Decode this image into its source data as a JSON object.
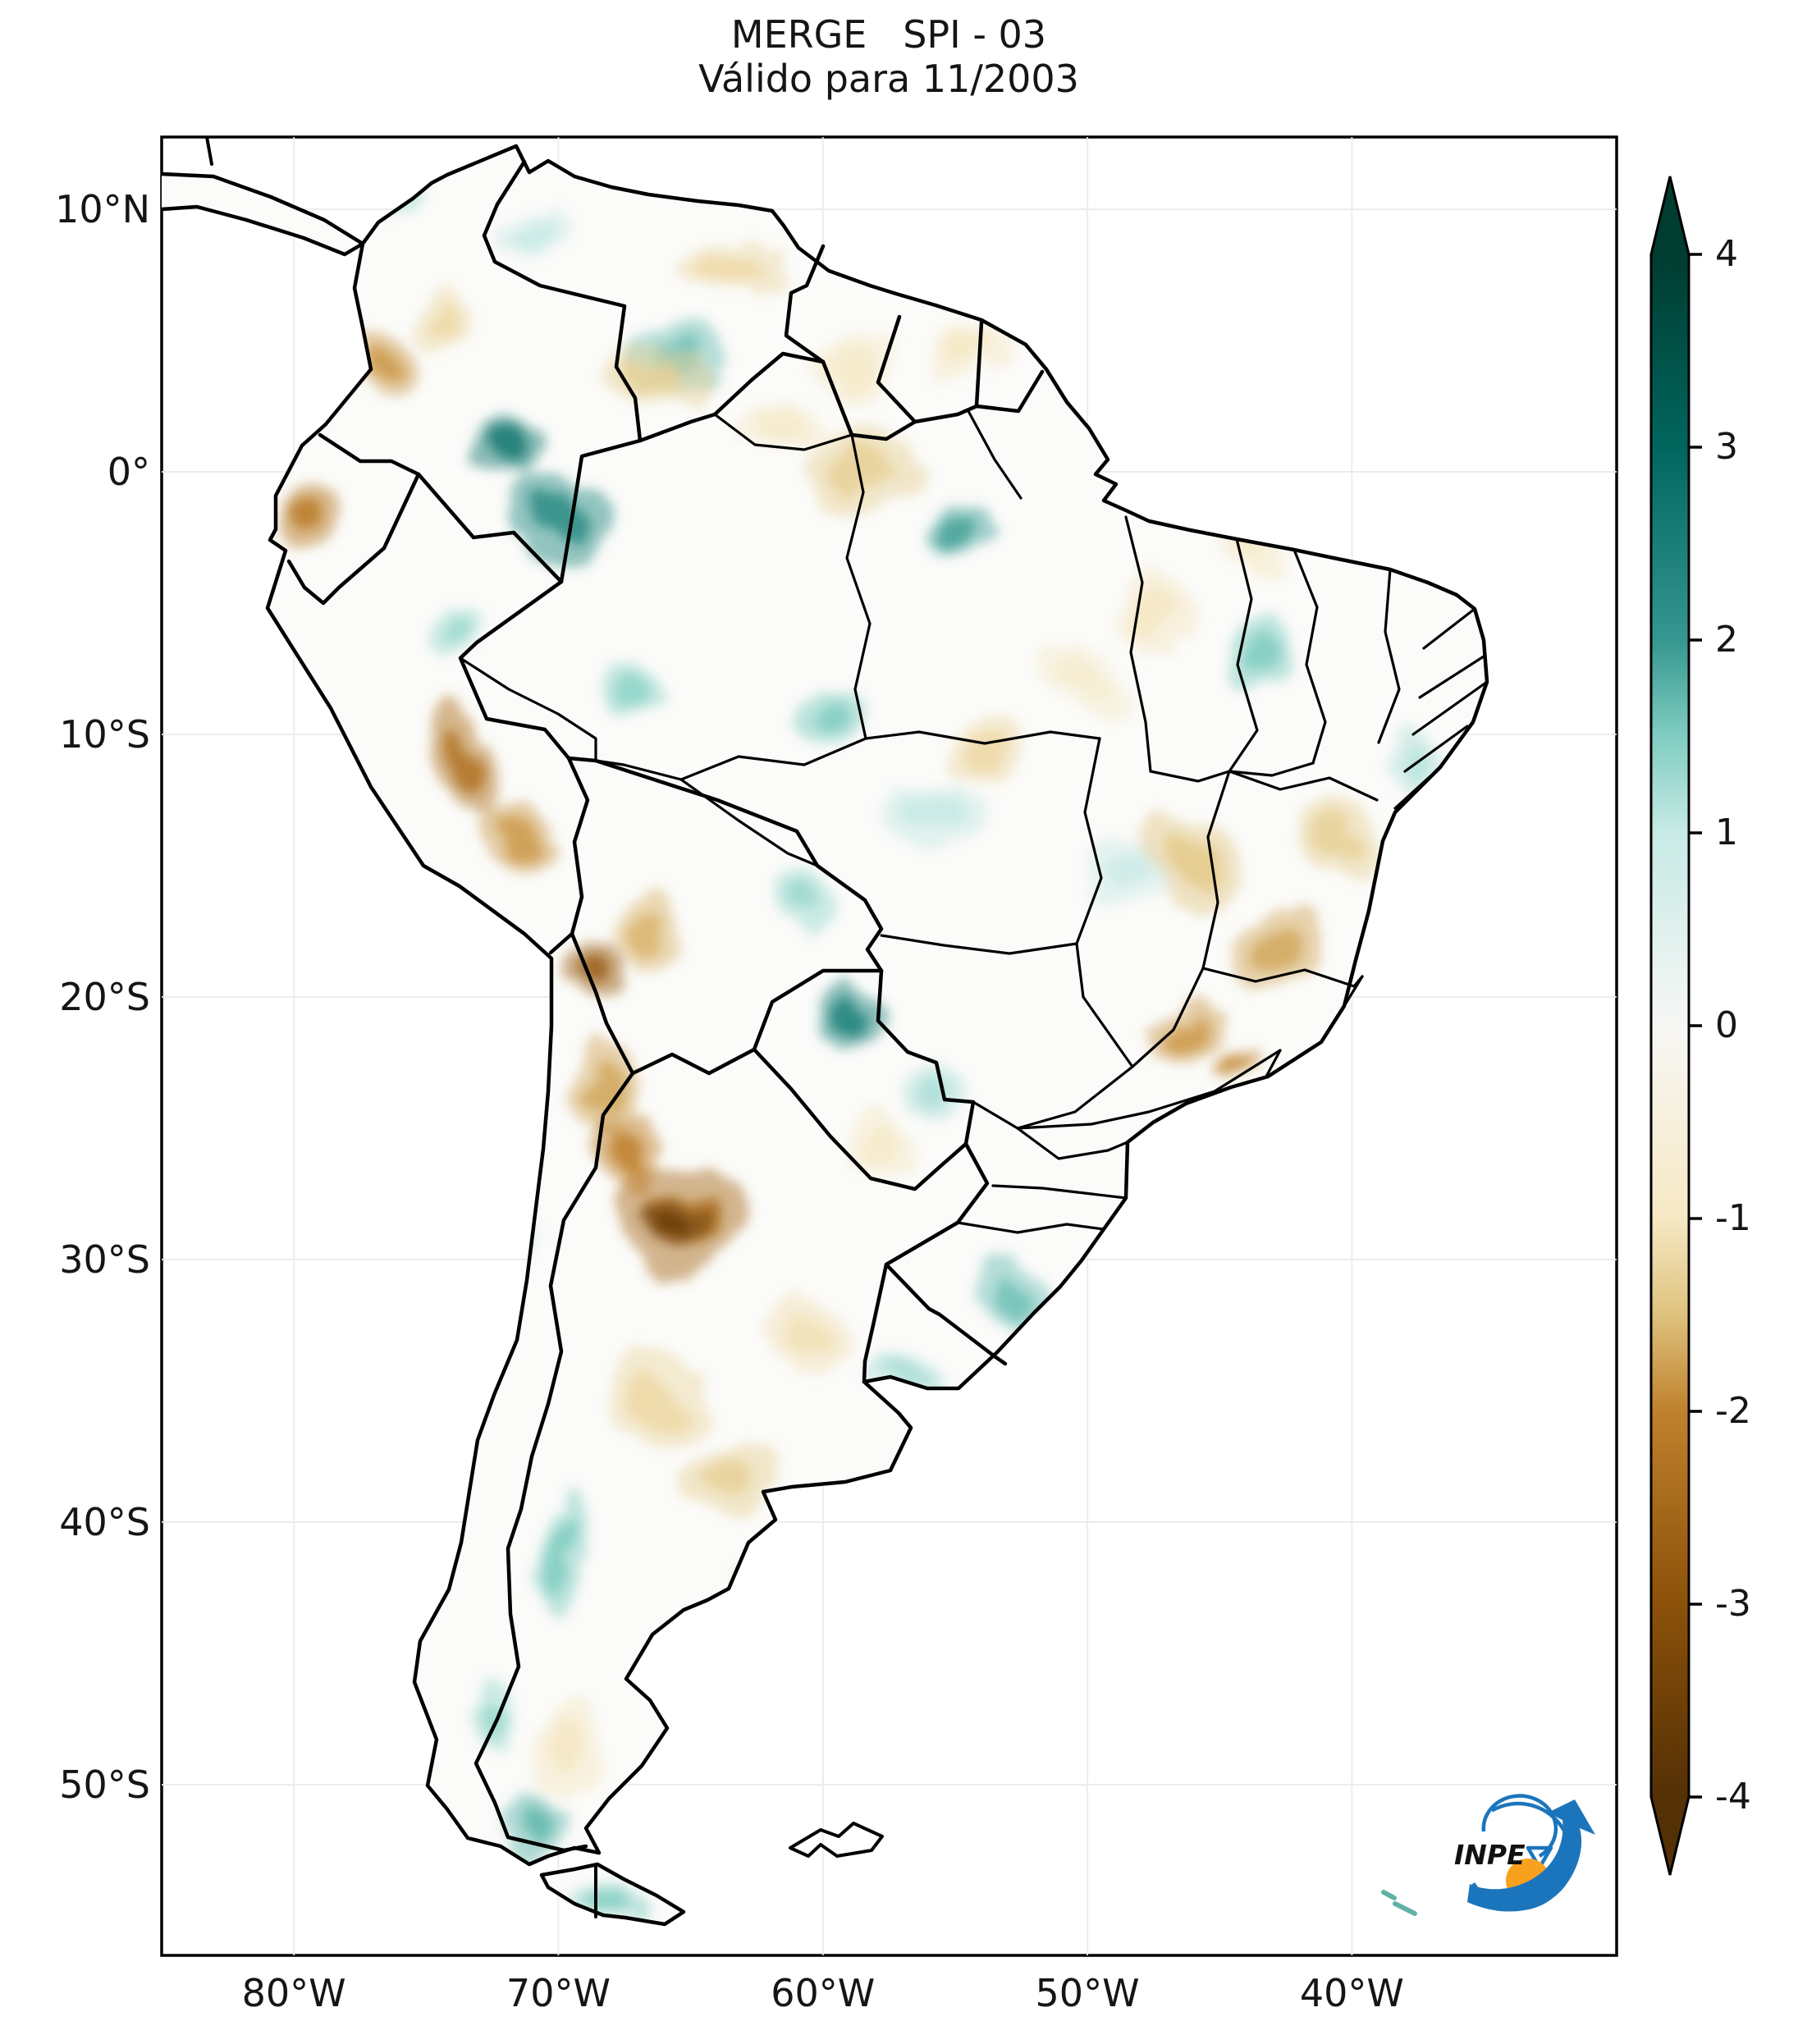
{
  "title": {
    "line1": "MERGE   SPI - 03",
    "line2": "Válido para 11/2003"
  },
  "logo": {
    "text": "INPE"
  },
  "axes": {
    "lat_ticks": [
      {
        "deg": 10,
        "label": "10°N"
      },
      {
        "deg": 0,
        "label": "0°"
      },
      {
        "deg": -10,
        "label": "10°S"
      },
      {
        "deg": -20,
        "label": "20°S"
      },
      {
        "deg": -30,
        "label": "30°S"
      },
      {
        "deg": -40,
        "label": "40°S"
      },
      {
        "deg": -50,
        "label": "50°S"
      }
    ],
    "lon_ticks": [
      {
        "deg": -80,
        "label": "80°W"
      },
      {
        "deg": -70,
        "label": "70°W"
      },
      {
        "deg": -60,
        "label": "60°W"
      },
      {
        "deg": -50,
        "label": "50°W"
      },
      {
        "deg": -40,
        "label": "40°W"
      }
    ]
  },
  "colorbar": {
    "extend": "both",
    "ticks": [
      {
        "value": 4,
        "label": "4"
      },
      {
        "value": 3,
        "label": "3"
      },
      {
        "value": 2,
        "label": "2"
      },
      {
        "value": 1,
        "label": "1"
      },
      {
        "value": 0,
        "label": "0"
      },
      {
        "value": -1,
        "label": "-1"
      },
      {
        "value": -2,
        "label": "-2"
      },
      {
        "value": -3,
        "label": "-3"
      },
      {
        "value": -4,
        "label": "-4"
      }
    ]
  },
  "chart_data": {
    "type": "heatmap",
    "title": "MERGE   SPI - 03",
    "subtitle": "Válido para 11/2003",
    "variable": "SPI-03 (3-month Standardized Precipitation Index) from MERGE precipitation",
    "region": "South America",
    "lon_range": [
      -85,
      -29.9
    ],
    "lat_range": [
      -56.5,
      12.75
    ],
    "color_range": [
      -4,
      4
    ],
    "colormap": "BrBG (brown = dry / negative SPI, teal = wet / positive SPI)",
    "colormap_stops": [
      {
        "v": 4,
        "c": "#003c30"
      },
      {
        "v": 3,
        "c": "#01665e"
      },
      {
        "v": 2,
        "c": "#35978f"
      },
      {
        "v": 1.5,
        "c": "#80cdc1"
      },
      {
        "v": 1,
        "c": "#c7eae5"
      },
      {
        "v": 0,
        "c": "#f7f7f5"
      },
      {
        "v": -1,
        "c": "#f6e8c3"
      },
      {
        "v": -1.5,
        "c": "#dfc27d"
      },
      {
        "v": -2,
        "c": "#bf812d"
      },
      {
        "v": -3,
        "c": "#8c510a"
      },
      {
        "v": -4,
        "c": "#543005"
      }
    ],
    "anomalies": [
      {
        "lon": -76.4,
        "lat": 10.6,
        "spi": 1.3,
        "rx": 1.4,
        "ry": 1.0,
        "rot": 0
      },
      {
        "lon": -71.0,
        "lat": 9.3,
        "spi": 1.0,
        "rx": 1.3,
        "ry": 0.9,
        "rot": 0
      },
      {
        "lon": -65.5,
        "lat": 4.3,
        "spi": 1.6,
        "rx": 1.9,
        "ry": 1.3,
        "rot": -15
      },
      {
        "lon": -72.0,
        "lat": 0.6,
        "spi": 2.6,
        "rx": 1.3,
        "ry": 1.1,
        "rot": 0
      },
      {
        "lon": -69.8,
        "lat": -1.8,
        "spi": 2.2,
        "rx": 2.0,
        "ry": 1.5,
        "rot": 20
      },
      {
        "lon": -74.0,
        "lat": -6.0,
        "spi": 1.3,
        "rx": 1.1,
        "ry": 0.9,
        "rot": 0
      },
      {
        "lon": -67.5,
        "lat": -8.0,
        "spi": 1.4,
        "rx": 1.4,
        "ry": 1.0,
        "rot": 0
      },
      {
        "lon": -54.6,
        "lat": -2.0,
        "spi": 1.9,
        "rx": 1.3,
        "ry": 1.0,
        "rot": 0
      },
      {
        "lon": -43.4,
        "lat": -7.0,
        "spi": 1.5,
        "rx": 1.2,
        "ry": 1.6,
        "rot": 0
      },
      {
        "lon": -37.6,
        "lat": -10.8,
        "spi": 1.1,
        "rx": 0.8,
        "ry": 1.0,
        "rot": 0
      },
      {
        "lon": -59.5,
        "lat": -9.3,
        "spi": 1.5,
        "rx": 1.6,
        "ry": 1.2,
        "rot": 0
      },
      {
        "lon": -56.0,
        "lat": -13.0,
        "spi": 1.0,
        "rx": 1.8,
        "ry": 1.3,
        "rot": 0
      },
      {
        "lon": -49.0,
        "lat": -15.5,
        "spi": 0.9,
        "rx": 1.5,
        "ry": 1.2,
        "rot": 0
      },
      {
        "lon": -60.8,
        "lat": -16.3,
        "spi": 1.3,
        "rx": 1.3,
        "ry": 1.0,
        "rot": 0
      },
      {
        "lon": -58.8,
        "lat": -20.5,
        "spi": 2.4,
        "rx": 1.3,
        "ry": 1.2,
        "rot": 0
      },
      {
        "lon": -55.8,
        "lat": -23.5,
        "spi": 1.2,
        "rx": 1.2,
        "ry": 1.0,
        "rot": 0
      },
      {
        "lon": -52.7,
        "lat": -31.3,
        "spi": 1.6,
        "rx": 1.5,
        "ry": 1.1,
        "rot": 30
      },
      {
        "lon": -57.0,
        "lat": -34.3,
        "spi": 1.2,
        "rx": 1.5,
        "ry": 0.8,
        "rot": 0
      },
      {
        "lon": -71.8,
        "lat": -30.0,
        "spi": 1.1,
        "rx": 0.5,
        "ry": 1.5,
        "rot": 0
      },
      {
        "lon": -70.0,
        "lat": -41.5,
        "spi": 1.5,
        "rx": 0.8,
        "ry": 2.2,
        "rot": 0
      },
      {
        "lon": -72.3,
        "lat": -47.5,
        "spi": 1.3,
        "rx": 0.8,
        "ry": 1.5,
        "rot": 0
      },
      {
        "lon": -70.7,
        "lat": -51.5,
        "spi": 1.7,
        "rx": 0.9,
        "ry": 1.6,
        "rot": 0
      },
      {
        "lon": -68.0,
        "lat": -54.6,
        "spi": 1.5,
        "rx": 1.3,
        "ry": 0.7,
        "rot": 0
      },
      {
        "lon": -76.6,
        "lat": 4.3,
        "spi": -1.8,
        "rx": 1.1,
        "ry": 1.3,
        "rot": 0
      },
      {
        "lon": -74.3,
        "lat": 5.8,
        "spi": -1.2,
        "rx": 1.2,
        "ry": 1.0,
        "rot": 0
      },
      {
        "lon": -79.3,
        "lat": -1.8,
        "spi": -2.1,
        "rx": 1.2,
        "ry": 1.5,
        "rot": 10
      },
      {
        "lon": -66.5,
        "lat": 3.5,
        "spi": -1.3,
        "rx": 2.2,
        "ry": 1.2,
        "rot": 0
      },
      {
        "lon": -63.4,
        "lat": 7.8,
        "spi": -1.2,
        "rx": 1.7,
        "ry": 1.1,
        "rot": 0
      },
      {
        "lon": -59.0,
        "lat": 4.0,
        "spi": -0.9,
        "rx": 1.5,
        "ry": 1.2,
        "rot": 0
      },
      {
        "lon": -54.5,
        "lat": 4.5,
        "spi": -1.0,
        "rx": 1.5,
        "ry": 0.9,
        "rot": 0
      },
      {
        "lon": -61.5,
        "lat": 1.5,
        "spi": -0.9,
        "rx": 1.4,
        "ry": 1.0,
        "rot": 0
      },
      {
        "lon": -58.5,
        "lat": 0.3,
        "spi": -1.3,
        "rx": 2.0,
        "ry": 1.4,
        "rot": 0
      },
      {
        "lon": -73.5,
        "lat": -11.0,
        "spi": -2.3,
        "rx": 1.3,
        "ry": 2.2,
        "rot": -35
      },
      {
        "lon": -71.5,
        "lat": -14.0,
        "spi": -1.8,
        "rx": 1.2,
        "ry": 1.5,
        "rot": -30
      },
      {
        "lon": -68.8,
        "lat": -18.8,
        "spi": -2.7,
        "rx": 1.1,
        "ry": 1.4,
        "rot": 0
      },
      {
        "lon": -66.5,
        "lat": -17.5,
        "spi": -1.6,
        "rx": 1.5,
        "ry": 1.2,
        "rot": 0
      },
      {
        "lon": -68.3,
        "lat": -23.5,
        "spi": -1.7,
        "rx": 1.3,
        "ry": 1.8,
        "rot": 0
      },
      {
        "lon": -65.5,
        "lat": -28.3,
        "spi": -2.4,
        "rx": 2.7,
        "ry": 2.0,
        "rot": -10
      },
      {
        "lon": -65.8,
        "lat": -28.5,
        "spi": -3.6,
        "rx": 1.4,
        "ry": 1.0,
        "rot": -10
      },
      {
        "lon": -67.3,
        "lat": -26.0,
        "spi": -2.0,
        "rx": 1.4,
        "ry": 1.6,
        "rot": 0
      },
      {
        "lon": -66.5,
        "lat": -35.0,
        "spi": -1.2,
        "rx": 1.8,
        "ry": 1.8,
        "rot": 0
      },
      {
        "lon": -63.5,
        "lat": -38.5,
        "spi": -1.3,
        "rx": 2.2,
        "ry": 1.5,
        "rot": 0
      },
      {
        "lon": -62.0,
        "lat": -42.5,
        "spi": -1.1,
        "rx": 1.5,
        "ry": 1.5,
        "rot": 0
      },
      {
        "lon": -69.5,
        "lat": -48.5,
        "spi": -1.0,
        "rx": 1.2,
        "ry": 1.8,
        "rot": 0
      },
      {
        "lon": -60.5,
        "lat": -33.0,
        "spi": -1.1,
        "rx": 1.5,
        "ry": 1.3,
        "rot": 0
      },
      {
        "lon": -57.8,
        "lat": -26.0,
        "spi": -0.9,
        "rx": 1.3,
        "ry": 1.2,
        "rot": 0
      },
      {
        "lon": -46.2,
        "lat": -15.0,
        "spi": -1.4,
        "rx": 2.0,
        "ry": 1.6,
        "rot": 20
      },
      {
        "lon": -42.8,
        "lat": -18.2,
        "spi": -1.7,
        "rx": 1.5,
        "ry": 1.5,
        "rot": 0
      },
      {
        "lon": -40.5,
        "lat": -14.0,
        "spi": -1.3,
        "rx": 1.3,
        "ry": 1.5,
        "rot": 0
      },
      {
        "lon": -46.3,
        "lat": -21.3,
        "spi": -1.8,
        "rx": 1.3,
        "ry": 1.0,
        "rot": 0
      },
      {
        "lon": -44.3,
        "lat": -22.5,
        "spi": -1.9,
        "rx": 0.7,
        "ry": 0.6,
        "rot": 0
      },
      {
        "lon": -53.8,
        "lat": -10.5,
        "spi": -1.2,
        "rx": 1.8,
        "ry": 1.3,
        "rot": 0
      },
      {
        "lon": -47.5,
        "lat": -5.5,
        "spi": -1.0,
        "rx": 1.5,
        "ry": 1.3,
        "rot": 0
      },
      {
        "lon": -44.0,
        "lat": -2.8,
        "spi": -0.9,
        "rx": 1.3,
        "ry": 0.9,
        "rot": 0
      },
      {
        "lon": -50.0,
        "lat": -8.0,
        "spi": -0.8,
        "rx": 1.5,
        "ry": 1.2,
        "rot": 0
      }
    ]
  },
  "style_colors": {
    "border": "#000000",
    "land": "#fbfbf9",
    "gridline": "#ebebe8",
    "logo_blue": "#1b75bc",
    "logo_orange": "#f9a11d",
    "text": "#151515"
  }
}
